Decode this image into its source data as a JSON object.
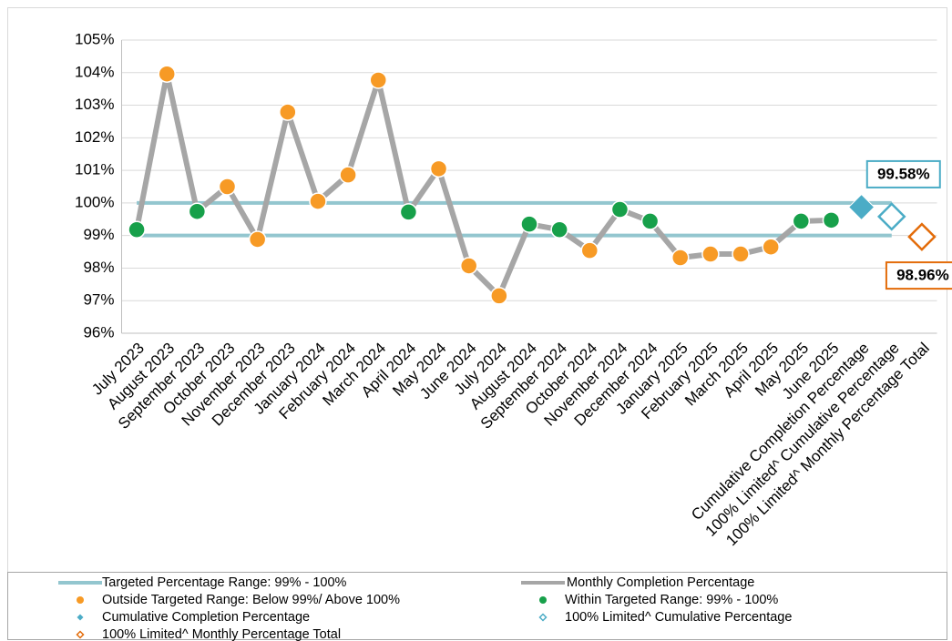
{
  "chart_data": {
    "type": "line",
    "categories": [
      "July 2023",
      "August 2023",
      "September 2023",
      "October 2023",
      "November 2023",
      "December 2023",
      "January 2024",
      "February 2024",
      "March 2024",
      "April 2024",
      "May 2024",
      "June 2024",
      "July 2024",
      "August 2024",
      "September 2024",
      "October 2024",
      "November 2024",
      "December 2024",
      "January 2025",
      "February 2025",
      "March 2025",
      "April 2025",
      "May 2025",
      "June 2025",
      "Cumulative Completion Percentage",
      "100% Limited^ Cumulative Percentage",
      "100% Limited^ Monthly Percentage Total"
    ],
    "ylim": [
      96,
      105
    ],
    "yticks": [
      {
        "value": 96,
        "label": "96%"
      },
      {
        "value": 97,
        "label": "97%"
      },
      {
        "value": 98,
        "label": "98%"
      },
      {
        "value": 99,
        "label": "99%"
      },
      {
        "value": 100,
        "label": "100%"
      },
      {
        "value": 101,
        "label": "101%"
      },
      {
        "value": 102,
        "label": "102%"
      },
      {
        "value": 103,
        "label": "103%"
      },
      {
        "value": 104,
        "label": "104%"
      },
      {
        "value": 105,
        "label": "105%"
      }
    ],
    "grid": true,
    "legend": "bottom",
    "series": [
      {
        "name": "Targeted Percentage Range: 99% - 100%",
        "mark": "range",
        "color": "#93c6cf",
        "range": [
          99,
          100
        ]
      },
      {
        "name": "Monthly Completion Percentage",
        "mark": "line",
        "color": "#a6a6a6",
        "values": [
          99.18,
          103.96,
          99.74,
          100.5,
          98.88,
          102.79,
          100.05,
          100.86,
          103.77,
          99.72,
          101.05,
          98.07,
          97.15,
          99.35,
          99.18,
          98.54,
          99.8,
          99.44,
          98.32,
          98.43,
          98.43,
          98.65,
          99.44,
          99.47,
          null,
          null,
          null
        ]
      },
      {
        "name": "Outside Targeted Range: Below 99%/ Above 100%",
        "mark": "circle",
        "color": "#f79a25",
        "values": [
          null,
          103.96,
          null,
          100.5,
          98.88,
          102.79,
          100.05,
          100.86,
          103.77,
          null,
          101.05,
          98.07,
          97.15,
          null,
          null,
          98.54,
          null,
          null,
          98.32,
          98.43,
          98.43,
          98.65,
          null,
          null,
          null,
          null,
          null
        ]
      },
      {
        "name": "Within Targeted Range: 99% - 100%",
        "mark": "circle",
        "color": "#17a04a",
        "values": [
          99.18,
          null,
          99.74,
          null,
          null,
          null,
          null,
          null,
          null,
          99.72,
          null,
          null,
          null,
          99.35,
          99.18,
          null,
          99.8,
          99.44,
          null,
          null,
          null,
          null,
          99.44,
          99.47,
          null,
          null,
          null
        ]
      },
      {
        "name": "Cumulative Completion Percentage",
        "mark": "diamond",
        "color": "#4bacc6",
        "values": [
          null,
          null,
          null,
          null,
          null,
          null,
          null,
          null,
          null,
          null,
          null,
          null,
          null,
          null,
          null,
          null,
          null,
          null,
          null,
          null,
          null,
          null,
          null,
          null,
          99.87,
          null,
          null
        ]
      },
      {
        "name": "100% Limited^ Cumulative Percentage",
        "mark": "diamond-open",
        "color": "#4bacc6",
        "values": [
          null,
          null,
          null,
          null,
          null,
          null,
          null,
          null,
          null,
          null,
          null,
          null,
          null,
          null,
          null,
          null,
          null,
          null,
          null,
          null,
          null,
          null,
          null,
          null,
          null,
          99.58,
          null
        ],
        "value_labels": [
          null,
          null,
          null,
          null,
          null,
          null,
          null,
          null,
          null,
          null,
          null,
          null,
          null,
          null,
          null,
          null,
          null,
          null,
          null,
          null,
          null,
          null,
          null,
          null,
          null,
          "99.58%",
          null
        ]
      },
      {
        "name": "100% Limited^ Monthly Percentage Total",
        "mark": "diamond-open",
        "color": "#e36c0a",
        "values": [
          null,
          null,
          null,
          null,
          null,
          null,
          null,
          null,
          null,
          null,
          null,
          null,
          null,
          null,
          null,
          null,
          null,
          null,
          null,
          null,
          null,
          null,
          null,
          null,
          null,
          null,
          98.96
        ],
        "value_labels": [
          null,
          null,
          null,
          null,
          null,
          null,
          null,
          null,
          null,
          null,
          null,
          null,
          null,
          null,
          null,
          null,
          null,
          null,
          null,
          null,
          null,
          null,
          null,
          null,
          null,
          null,
          "98.96%"
        ]
      }
    ]
  }
}
